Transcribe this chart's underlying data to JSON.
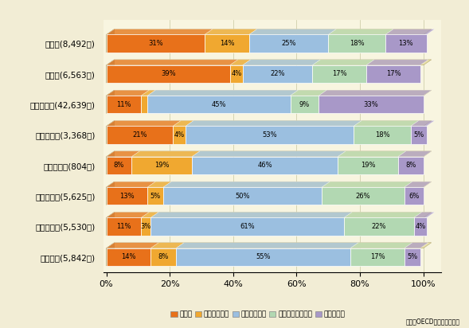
{
  "countries": [
    "日本",
    "韓国",
    "アメリカ",
    "イギリス",
    "オランダ",
    "イタリア",
    "フランス",
    "ドイツ"
  ],
  "counts": [
    "(8,492人)",
    "(6,563人)",
    "(42,639人)",
    "(3,368人)",
    "(804人)",
    "(5,625人)",
    "(5,530人)",
    "(5,842人)"
  ],
  "data": {
    "歩行中": [
      31,
      39,
      11,
      21,
      8,
      13,
      11,
      14
    ],
    "自転車利用中": [
      14,
      4,
      2,
      4,
      19,
      5,
      3,
      8
    ],
    "自動車乗車中": [
      25,
      22,
      45,
      53,
      46,
      50,
      61,
      55
    ],
    "オートバイ乗車中": [
      18,
      17,
      9,
      18,
      19,
      26,
      22,
      17
    ],
    "その他不明": [
      13,
      17,
      33,
      5,
      8,
      6,
      4,
      5
    ]
  },
  "colors": {
    "歩行中": "#E8711A",
    "自転車利用中": "#F0A830",
    "自動車乗車中": "#9BBFE0",
    "オートバイ乗車中": "#B2D8B2",
    "その他不明": "#A898C8"
  },
  "legend_labels": [
    "歩行中",
    "自転車利用中",
    "自動車乗車中",
    "オートバイ乗車中",
    "その他不明"
  ],
  "background_color": "#F2EDD5",
  "plot_bg_color": "#F8F5E0",
  "grid_color": "#C8C8A0",
  "source_text": "出典：OECD資料より作成。",
  "bar_3d_top_color": "#E8E0B0",
  "bar_3d_side_color": "#A09060",
  "figsize": [
    5.89,
    4.12
  ],
  "dpi": 100
}
